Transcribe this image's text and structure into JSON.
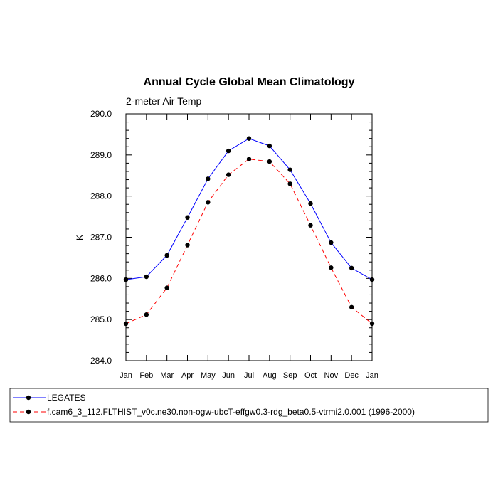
{
  "chart_data": {
    "type": "line",
    "title": "Annual Cycle Global Mean Climatology",
    "subtitle": "2-meter Air Temp",
    "xlabel": "",
    "ylabel": "K",
    "categories": [
      "Jan",
      "Feb",
      "Mar",
      "Apr",
      "May",
      "Jun",
      "Jul",
      "Aug",
      "Sep",
      "Oct",
      "Nov",
      "Dec",
      "Jan"
    ],
    "ylim": [
      284.0,
      290.0
    ],
    "yticks": [
      "284.0",
      "285.0",
      "286.0",
      "287.0",
      "288.0",
      "289.0",
      "290.0"
    ],
    "grid": false,
    "legend_position": "bottom",
    "series": [
      {
        "name": "LEGATES",
        "color": "#0000ff",
        "line_style": "solid",
        "marker": "filled-circle",
        "values": [
          285.97,
          286.04,
          286.56,
          287.48,
          288.42,
          289.1,
          289.4,
          289.22,
          288.64,
          287.82,
          286.87,
          286.25,
          285.97
        ]
      },
      {
        "name": "f.cam6_3_112.FLTHIST_v0c.ne30.non-ogw-ubcT-effgw0.3-rdg_beta0.5-vtrmi2.0.001 (1996-2000)",
        "color": "#ff0000",
        "line_style": "dashed",
        "marker": "filled-circle",
        "values": [
          284.9,
          285.12,
          285.77,
          286.81,
          287.85,
          288.52,
          288.9,
          288.84,
          288.3,
          287.29,
          286.26,
          285.3,
          284.9
        ]
      }
    ]
  }
}
